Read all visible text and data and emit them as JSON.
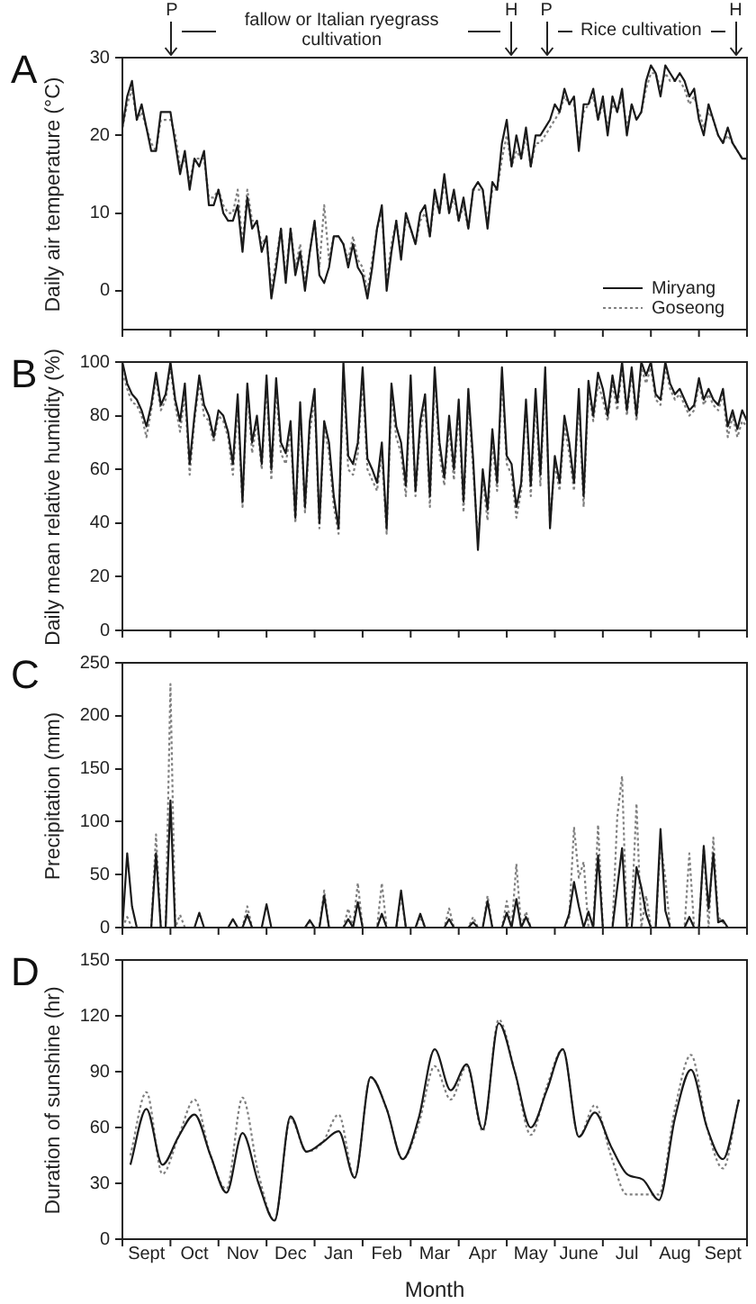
{
  "chart_data": [
    {
      "type": "line",
      "title": "A",
      "ylabel": "Daily air temperature (°C)",
      "legend": "bottom right",
      "marker": "none",
      "tick_labels": "y",
      "annotations": [
        "P",
        "fallow or Italian ryegrass cultivation",
        "H",
        "P",
        "Rice cultivation",
        "H"
      ],
      "ylim": [
        -5,
        30
      ],
      "yticks": [
        0,
        10,
        20,
        30
      ],
      "categories": [
        null,
        null,
        null,
        null,
        null,
        null,
        null,
        null,
        null,
        null,
        null,
        null,
        null,
        null,
        null,
        null,
        null,
        null,
        null,
        null,
        null,
        null,
        null,
        null,
        null,
        null,
        null,
        null,
        null,
        null,
        null,
        null,
        null,
        null,
        null,
        null,
        null,
        null,
        null,
        null,
        null,
        null,
        null,
        null,
        null,
        null,
        null,
        null,
        null,
        null,
        null,
        null,
        null,
        null,
        null,
        null,
        null,
        null,
        null,
        null,
        null,
        null,
        null,
        null,
        null,
        null,
        null,
        null,
        null,
        null,
        null,
        null,
        null,
        null,
        null,
        null,
        null,
        null,
        null,
        null,
        null,
        null,
        null,
        null,
        null,
        null,
        null,
        null,
        null,
        null,
        null,
        null,
        null,
        null,
        null,
        null,
        null,
        null,
        null,
        null,
        null,
        null,
        null,
        null,
        null,
        null,
        null,
        null,
        null,
        null,
        null,
        null,
        null,
        null,
        null,
        null,
        null,
        null,
        null,
        null,
        null,
        null,
        null,
        null,
        null,
        null,
        null,
        null,
        null,
        null,
        null
      ],
      "series": [
        {
          "name": "Miryang",
          "color": "#1a1a1a",
          "line_style": "solid",
          "values": [
            21,
            25,
            27,
            22,
            24,
            21,
            18,
            18,
            23,
            23,
            23,
            19,
            15,
            18,
            13,
            17,
            16,
            18,
            11,
            11,
            13,
            10,
            9,
            9,
            11,
            5,
            12,
            8,
            9,
            5,
            7,
            -1,
            3,
            8,
            1,
            8,
            2,
            5,
            0,
            5,
            9,
            2,
            1,
            3,
            7,
            7,
            6,
            3,
            6,
            3,
            2,
            -1,
            3,
            8,
            11,
            0,
            5,
            9,
            4,
            10,
            8,
            6,
            10,
            11,
            7,
            13,
            10,
            15,
            10,
            13,
            9,
            12,
            8,
            13,
            14,
            13,
            8,
            14,
            13,
            19,
            22,
            16,
            20,
            17,
            21,
            16,
            20,
            20,
            21,
            22,
            24,
            23,
            26,
            24,
            25,
            18,
            24,
            24,
            26,
            22,
            25,
            20,
            25,
            23,
            26,
            20,
            24,
            22,
            23,
            27,
            29,
            28,
            25,
            29,
            28,
            27,
            28,
            27,
            25,
            26,
            22,
            20,
            24,
            22,
            20,
            19,
            21,
            19,
            18,
            17,
            17
          ]
        },
        {
          "name": "Goseong",
          "color": "#808080",
          "line_style": "dotted",
          "values": [
            21,
            24,
            26,
            22,
            23,
            21,
            19,
            18,
            22,
            22,
            22,
            20,
            16,
            17,
            14,
            17,
            17,
            17,
            12,
            12,
            13,
            11,
            10,
            10,
            13,
            6,
            13,
            9,
            9,
            6,
            7,
            0,
            4,
            8,
            2,
            8,
            3,
            6,
            1,
            5,
            9,
            3,
            11,
            4,
            7,
            7,
            6,
            4,
            7,
            4,
            3,
            0,
            4,
            8,
            10,
            1,
            6,
            9,
            5,
            9,
            8,
            6,
            9,
            10,
            7,
            12,
            10,
            14,
            10,
            12,
            9,
            11,
            8,
            13,
            13,
            13,
            9,
            13,
            13,
            17,
            20,
            16,
            18,
            17,
            20,
            16,
            19,
            19,
            20,
            21,
            22,
            23,
            25,
            24,
            24,
            19,
            23,
            24,
            25,
            22,
            24,
            21,
            24,
            23,
            25,
            21,
            24,
            22,
            23,
            26,
            28,
            28,
            26,
            28,
            27,
            27,
            27,
            26,
            24,
            25,
            23,
            21,
            23,
            22,
            20,
            19,
            20,
            19,
            18,
            17,
            17
          ]
        }
      ]
    },
    {
      "type": "line",
      "title": "B",
      "ylabel": "Daily mean relative humidity (%)",
      "marker": "none",
      "tick_labels": "y",
      "ylim": [
        0,
        100
      ],
      "yticks": [
        0,
        20,
        40,
        60,
        80,
        100
      ],
      "categories": [
        null,
        null,
        null,
        null,
        null,
        null,
        null,
        null,
        null,
        null,
        null,
        null,
        null,
        null,
        null,
        null,
        null,
        null,
        null,
        null,
        null,
        null,
        null,
        null,
        null,
        null,
        null,
        null,
        null,
        null,
        null,
        null,
        null,
        null,
        null,
        null,
        null,
        null,
        null,
        null,
        null,
        null,
        null,
        null,
        null,
        null,
        null,
        null,
        null,
        null,
        null,
        null,
        null,
        null,
        null,
        null,
        null,
        null,
        null,
        null,
        null,
        null,
        null,
        null,
        null,
        null,
        null,
        null,
        null,
        null,
        null,
        null,
        null,
        null,
        null,
        null,
        null,
        null,
        null,
        null,
        null,
        null,
        null,
        null,
        null,
        null,
        null,
        null,
        null,
        null,
        null,
        null,
        null,
        null,
        null,
        null,
        null,
        null,
        null,
        null,
        null,
        null,
        null,
        null,
        null,
        null,
        null,
        null,
        null,
        null,
        null,
        null,
        null,
        null,
        null,
        null,
        null,
        null,
        null,
        null,
        null,
        null,
        null,
        null,
        null,
        null,
        null,
        null,
        null,
        null,
        null
      ],
      "series": [
        {
          "color": "#1a1a1a",
          "line_style": "solid",
          "values": [
            100,
            92,
            88,
            86,
            82,
            76,
            84,
            96,
            84,
            88,
            100,
            86,
            78,
            92,
            62,
            80,
            95,
            84,
            80,
            72,
            82,
            80,
            74,
            62,
            88,
            48,
            92,
            70,
            80,
            62,
            95,
            60,
            94,
            70,
            66,
            78,
            42,
            85,
            46,
            78,
            90,
            40,
            78,
            70,
            50,
            38,
            100,
            65,
            62,
            70,
            98,
            64,
            60,
            55,
            70,
            38,
            92,
            76,
            70,
            54,
            95,
            52,
            78,
            88,
            50,
            98,
            70,
            57,
            80,
            60,
            86,
            48,
            90,
            64,
            30,
            60,
            45,
            75,
            55,
            98,
            65,
            62,
            46,
            55,
            86,
            54,
            90,
            58,
            98,
            38,
            65,
            55,
            80,
            70,
            55,
            90,
            50,
            93,
            80,
            96,
            90,
            80,
            95,
            85,
            100,
            82,
            98,
            80,
            100,
            95,
            100,
            88,
            86,
            100,
            92,
            88,
            90,
            86,
            82,
            84,
            94,
            86,
            90,
            86,
            84,
            90,
            76,
            82,
            75,
            82,
            78
          ]
        },
        {
          "color": "#808080",
          "line_style": "dotted",
          "values": [
            96,
            90,
            85,
            84,
            80,
            72,
            82,
            94,
            82,
            86,
            98,
            84,
            74,
            88,
            58,
            78,
            92,
            80,
            78,
            70,
            80,
            78,
            72,
            58,
            84,
            46,
            90,
            66,
            78,
            60,
            92,
            56,
            90,
            66,
            62,
            74,
            40,
            82,
            44,
            74,
            86,
            38,
            76,
            66,
            46,
            36,
            96,
            60,
            58,
            66,
            94,
            60,
            56,
            52,
            66,
            36,
            88,
            72,
            66,
            50,
            90,
            50,
            74,
            84,
            46,
            94,
            66,
            54,
            76,
            56,
            82,
            44,
            86,
            60,
            34,
            56,
            41,
            70,
            52,
            94,
            62,
            58,
            42,
            52,
            84,
            50,
            86,
            54,
            94,
            40,
            62,
            52,
            76,
            66,
            52,
            86,
            46,
            90,
            78,
            92,
            86,
            78,
            92,
            82,
            98,
            80,
            96,
            78,
            98,
            92,
            98,
            86,
            84,
            98,
            90,
            86,
            88,
            84,
            80,
            82,
            92,
            84,
            88,
            84,
            82,
            88,
            72,
            80,
            72,
            78,
            76
          ]
        }
      ]
    },
    {
      "type": "line",
      "title": "C",
      "ylabel": "Precipitation (mm)",
      "marker": "none",
      "tick_labels": "y",
      "ylim": [
        0,
        250
      ],
      "yticks": [
        0,
        50,
        100,
        150,
        200,
        250
      ],
      "categories": [
        null,
        null,
        null,
        null,
        null,
        null,
        null,
        null,
        null,
        null,
        null,
        null,
        null,
        null,
        null,
        null,
        null,
        null,
        null,
        null,
        null,
        null,
        null,
        null,
        null,
        null,
        null,
        null,
        null,
        null,
        null,
        null,
        null,
        null,
        null,
        null,
        null,
        null,
        null,
        null,
        null,
        null,
        null,
        null,
        null,
        null,
        null,
        null,
        null,
        null,
        null,
        null,
        null,
        null,
        null,
        null,
        null,
        null,
        null,
        null,
        null,
        null,
        null,
        null,
        null,
        null,
        null,
        null,
        null,
        null,
        null,
        null,
        null,
        null,
        null,
        null,
        null,
        null,
        null,
        null,
        null,
        null,
        null,
        null,
        null,
        null,
        null,
        null,
        null,
        null,
        null,
        null,
        null,
        null,
        null,
        null,
        null,
        null,
        null,
        null,
        null,
        null,
        null,
        null,
        null,
        null,
        null,
        null,
        null,
        null,
        null,
        null,
        null,
        null,
        null,
        null,
        null,
        null,
        null,
        null,
        null,
        null,
        null,
        null,
        null,
        null,
        null,
        null,
        null,
        null,
        null
      ],
      "series": [
        {
          "color": "#1a1a1a",
          "line_style": "solid",
          "values": [
            0,
            70,
            20,
            0,
            0,
            0,
            0,
            70,
            0,
            0,
            120,
            0,
            0,
            0,
            0,
            0,
            14,
            0,
            0,
            0,
            0,
            0,
            0,
            8,
            0,
            0,
            12,
            0,
            0,
            0,
            22,
            0,
            0,
            0,
            0,
            0,
            0,
            0,
            0,
            7,
            0,
            0,
            30,
            0,
            0,
            0,
            0,
            8,
            0,
            24,
            0,
            0,
            0,
            0,
            13,
            0,
            0,
            0,
            35,
            0,
            0,
            0,
            13,
            0,
            0,
            0,
            0,
            0,
            8,
            0,
            0,
            0,
            0,
            5,
            0,
            0,
            25,
            0,
            0,
            0,
            14,
            0,
            27,
            0,
            10,
            0,
            0,
            0,
            0,
            0,
            0,
            0,
            0,
            13,
            43,
            20,
            0,
            15,
            0,
            68,
            0,
            0,
            0,
            38,
            75,
            0,
            0,
            57,
            38,
            13,
            0,
            0,
            93,
            16,
            0,
            0,
            0,
            0,
            10,
            0,
            0,
            77,
            18,
            70,
            5,
            7,
            0,
            0,
            0,
            0,
            0
          ]
        },
        {
          "color": "#808080",
          "line_style": "dotted",
          "values": [
            0,
            10,
            0,
            0,
            0,
            0,
            0,
            88,
            0,
            0,
            230,
            0,
            12,
            0,
            0,
            0,
            0,
            0,
            0,
            0,
            0,
            0,
            0,
            0,
            0,
            0,
            20,
            0,
            0,
            0,
            0,
            0,
            0,
            0,
            0,
            0,
            0,
            0,
            0,
            5,
            0,
            0,
            35,
            0,
            0,
            0,
            0,
            18,
            0,
            42,
            0,
            0,
            0,
            0,
            42,
            0,
            0,
            0,
            30,
            0,
            0,
            0,
            10,
            0,
            0,
            0,
            0,
            0,
            18,
            0,
            0,
            0,
            0,
            10,
            0,
            0,
            30,
            0,
            0,
            0,
            25,
            0,
            60,
            0,
            15,
            0,
            0,
            0,
            0,
            0,
            0,
            0,
            0,
            10,
            95,
            47,
            62,
            0,
            0,
            97,
            0,
            0,
            0,
            105,
            143,
            0,
            15,
            117,
            0,
            30,
            0,
            0,
            80,
            47,
            0,
            0,
            0,
            0,
            70,
            0,
            0,
            75,
            0,
            85,
            10,
            5,
            0,
            0,
            0,
            0,
            0
          ]
        }
      ]
    },
    {
      "type": "line",
      "title": "D",
      "ylabel": "Duration of sunshine (hr)",
      "xlabel": "Month",
      "marker": "none",
      "ylim": [
        0,
        150
      ],
      "yticks": [
        0,
        30,
        60,
        90,
        120,
        150
      ],
      "categories": [
        null,
        "Sept",
        null,
        null,
        "Oct",
        null,
        null,
        "Nov",
        null,
        null,
        "Dec",
        null,
        null,
        "Jan",
        null,
        null,
        "Feb",
        null,
        null,
        "Mar",
        null,
        null,
        "Apr",
        null,
        null,
        "May",
        null,
        null,
        "June",
        null,
        null,
        "Jul",
        null,
        null,
        "Aug",
        null,
        null,
        "Sept",
        null
      ],
      "series": [
        {
          "color": "#1a1a1a",
          "line_style": "solid",
          "values": [
            40,
            70,
            40,
            55,
            67,
            45,
            25,
            57,
            30,
            10,
            66,
            47,
            52,
            58,
            33,
            87,
            70,
            43,
            65,
            102,
            80,
            94,
            59,
            116,
            90,
            60,
            80,
            102,
            55,
            68,
            50,
            35,
            32,
            21,
            65,
            91,
            60,
            43,
            75
          ]
        },
        {
          "color": "#808080",
          "line_style": "dotted",
          "values": [
            45,
            79,
            35,
            55,
            75,
            45,
            27,
            76,
            35,
            10,
            65,
            47,
            52,
            67,
            33,
            87,
            70,
            43,
            62,
            93,
            75,
            93,
            58,
            118,
            90,
            56,
            82,
            102,
            55,
            72,
            45,
            24,
            24,
            24,
            70,
            99,
            60,
            38,
            76
          ]
        }
      ]
    }
  ]
}
